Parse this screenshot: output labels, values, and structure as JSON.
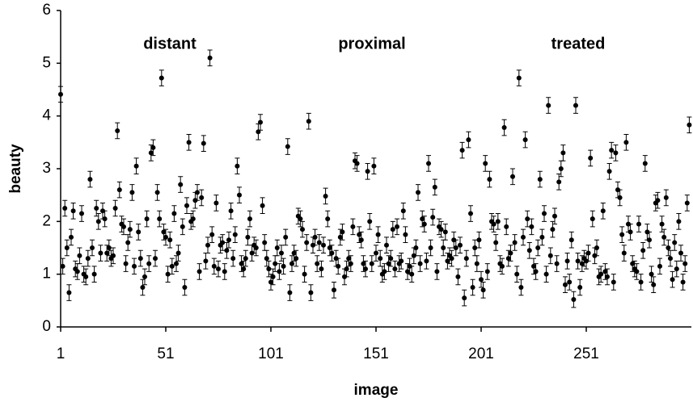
{
  "chart_data": {
    "type": "scatter",
    "annotations": [
      "distant",
      "proximal",
      "treated"
    ],
    "xlabel": "image",
    "ylabel": "beauty",
    "xlim": [
      1,
      301
    ],
    "ylim": [
      0,
      6
    ],
    "xticks": [
      1,
      51,
      101,
      151,
      201,
      251
    ],
    "yticks": [
      0,
      1,
      2,
      3,
      4,
      5,
      6
    ],
    "grid": false,
    "series": [
      {
        "color": "#000000",
        "error": 0.15,
        "x": [
          1,
          2,
          3,
          4,
          5,
          6,
          7,
          8,
          9,
          10,
          11,
          12,
          13,
          14,
          15,
          16,
          17,
          18,
          19,
          20,
          21,
          22,
          23,
          24,
          25,
          26,
          27,
          28,
          29,
          30,
          31,
          32,
          33,
          34,
          35,
          36,
          37,
          38,
          39,
          40,
          41,
          42,
          43,
          44,
          45,
          46,
          47,
          48,
          49,
          50,
          51,
          52,
          53,
          54,
          55,
          56,
          57,
          58,
          59,
          60,
          61,
          62,
          63,
          64,
          65,
          66,
          67,
          68,
          69,
          70,
          71,
          72,
          73,
          74,
          75,
          76,
          77,
          78,
          79,
          80,
          81,
          82,
          83,
          84,
          85,
          86,
          87,
          88,
          89,
          90,
          91,
          92,
          93,
          94,
          95,
          96,
          97,
          98,
          99,
          100,
          101,
          102,
          103,
          104,
          105,
          106,
          107,
          108,
          109,
          110,
          111,
          112,
          113,
          114,
          115,
          116,
          117,
          118,
          119,
          120,
          121,
          122,
          123,
          124,
          125,
          126,
          127,
          128,
          129,
          130,
          131,
          132,
          133,
          134,
          135,
          136,
          137,
          138,
          139,
          140,
          141,
          142,
          143,
          144,
          145,
          146,
          147,
          148,
          149,
          150,
          151,
          152,
          153,
          154,
          155,
          156,
          157,
          158,
          159,
          160,
          161,
          162,
          163,
          164,
          165,
          166,
          167,
          168,
          169,
          170,
          171,
          172,
          173,
          174,
          175,
          176,
          177,
          178,
          179,
          180,
          181,
          182,
          183,
          184,
          185,
          186,
          187,
          188,
          189,
          190,
          191,
          192,
          193,
          194,
          195,
          196,
          197,
          198,
          199,
          200,
          201,
          202,
          203,
          204,
          205,
          206,
          207,
          208,
          209,
          210,
          211,
          212,
          213,
          214,
          215,
          216,
          217,
          218,
          219,
          220,
          221,
          222,
          223,
          224,
          225,
          226,
          227,
          228,
          229,
          230,
          231,
          232,
          233,
          234,
          235,
          236,
          237,
          238,
          239,
          240,
          241,
          242,
          243,
          244,
          245,
          246,
          247,
          248,
          249,
          250,
          251,
          252,
          253,
          254,
          255,
          256,
          257,
          258,
          259,
          260,
          261,
          262,
          263,
          264,
          265,
          266,
          267,
          268,
          269,
          270,
          271,
          272,
          273,
          274,
          275,
          276,
          277,
          278,
          279,
          280,
          281,
          282,
          283,
          284,
          285,
          286,
          287,
          288,
          289,
          290,
          291,
          292,
          293,
          294,
          295,
          296,
          297,
          298,
          299,
          300
        ],
        "values": [
          4.41,
          1.15,
          2.25,
          1.5,
          0.65,
          1.7,
          2.2,
          1.1,
          1.05,
          1.35,
          2.15,
          1.0,
          0.95,
          1.3,
          2.8,
          1.5,
          1.0,
          2.25,
          2.0,
          1.4,
          2.2,
          2.05,
          1.4,
          1.5,
          1.3,
          1.35,
          2.25,
          3.72,
          2.6,
          1.95,
          1.9,
          1.2,
          1.6,
          1.85,
          2.55,
          1.15,
          3.05,
          1.8,
          1.3,
          0.75,
          0.95,
          2.05,
          1.2,
          3.3,
          3.4,
          1.3,
          2.55,
          2.05,
          4.72,
          1.8,
          1.7,
          1.0,
          1.65,
          1.15,
          2.15,
          1.2,
          1.4,
          2.7,
          1.9,
          0.75,
          2.3,
          3.5,
          2.0,
          2.05,
          2.4,
          2.55,
          1.05,
          2.45,
          3.48,
          1.25,
          1.55,
          5.1,
          1.75,
          1.15,
          2.35,
          1.1,
          1.55,
          1.6,
          1.05,
          1.45,
          1.65,
          2.2,
          1.3,
          1.75,
          3.05,
          2.5,
          1.2,
          1.1,
          1.3,
          1.7,
          2.05,
          1.4,
          1.55,
          1.5,
          3.7,
          3.88,
          2.3,
          1.6,
          1.3,
          1.1,
          0.85,
          0.95,
          1.2,
          1.5,
          1.05,
          1.4,
          1.15,
          1.7,
          3.42,
          0.65,
          1.2,
          1.4,
          1.3,
          2.1,
          2.05,
          1.85,
          1.0,
          1.6,
          3.9,
          0.65,
          1.55,
          1.7,
          1.2,
          1.6,
          1.1,
          1.55,
          2.48,
          2.05,
          1.5,
          1.4,
          0.7,
          1.3,
          1.15,
          1.7,
          1.8,
          0.95,
          1.1,
          1.3,
          1.2,
          1.9,
          3.15,
          3.1,
          1.75,
          1.65,
          1.2,
          1.1,
          2.95,
          2.0,
          1.2,
          3.05,
          1.4,
          1.75,
          1.3,
          1.0,
          1.05,
          1.55,
          1.2,
          1.3,
          1.85,
          1.1,
          1.9,
          1.2,
          1.25,
          2.2,
          1.75,
          1.05,
          1.15,
          1.0,
          1.35,
          1.5,
          2.55,
          1.2,
          2.05,
          1.95,
          1.25,
          3.1,
          1.5,
          2.08,
          2.65,
          1.05,
          1.9,
          1.85,
          1.5,
          1.8,
          1.25,
          1.35,
          1.3,
          1.65,
          1.5,
          0.95,
          1.55,
          3.35,
          0.55,
          1.3,
          3.55,
          2.15,
          0.75,
          1.5,
          1.2,
          1.65,
          0.9,
          0.7,
          3.1,
          1.05,
          2.8,
          2.0,
          1.95,
          1.6,
          2.0,
          1.2,
          1.15,
          3.78,
          1.9,
          1.3,
          1.4,
          2.85,
          1.6,
          1.0,
          4.72,
          0.75,
          1.7,
          3.55,
          2.05,
          1.45,
          1.9,
          1.15,
          1.05,
          1.5,
          2.8,
          1.7,
          2.15,
          1.0,
          4.2,
          1.35,
          1.85,
          2.1,
          1.2,
          2.75,
          3.0,
          3.3,
          0.8,
          1.25,
          0.85,
          1.65,
          0.52,
          4.2,
          1.25,
          0.75,
          1.2,
          1.3,
          1.25,
          1.4,
          3.2,
          2.05,
          1.35,
          1.5,
          0.95,
          1.0,
          2.2,
          1.05,
          0.95,
          2.95,
          3.35,
          0.85,
          3.3,
          2.6,
          2.45,
          1.75,
          1.4,
          3.5,
          1.95,
          1.8,
          1.2,
          1.1,
          1.05,
          1.95,
          0.85,
          1.45,
          3.1,
          1.8,
          1.65,
          1.0,
          0.8,
          2.35,
          2.4,
          1.15,
          1.95,
          1.7,
          2.45,
          1.5,
          1.3,
          0.9,
          1.6,
          1.1,
          2.0,
          1.4,
          0.85,
          1.2,
          2.35,
          3.83
        ]
      }
    ]
  }
}
